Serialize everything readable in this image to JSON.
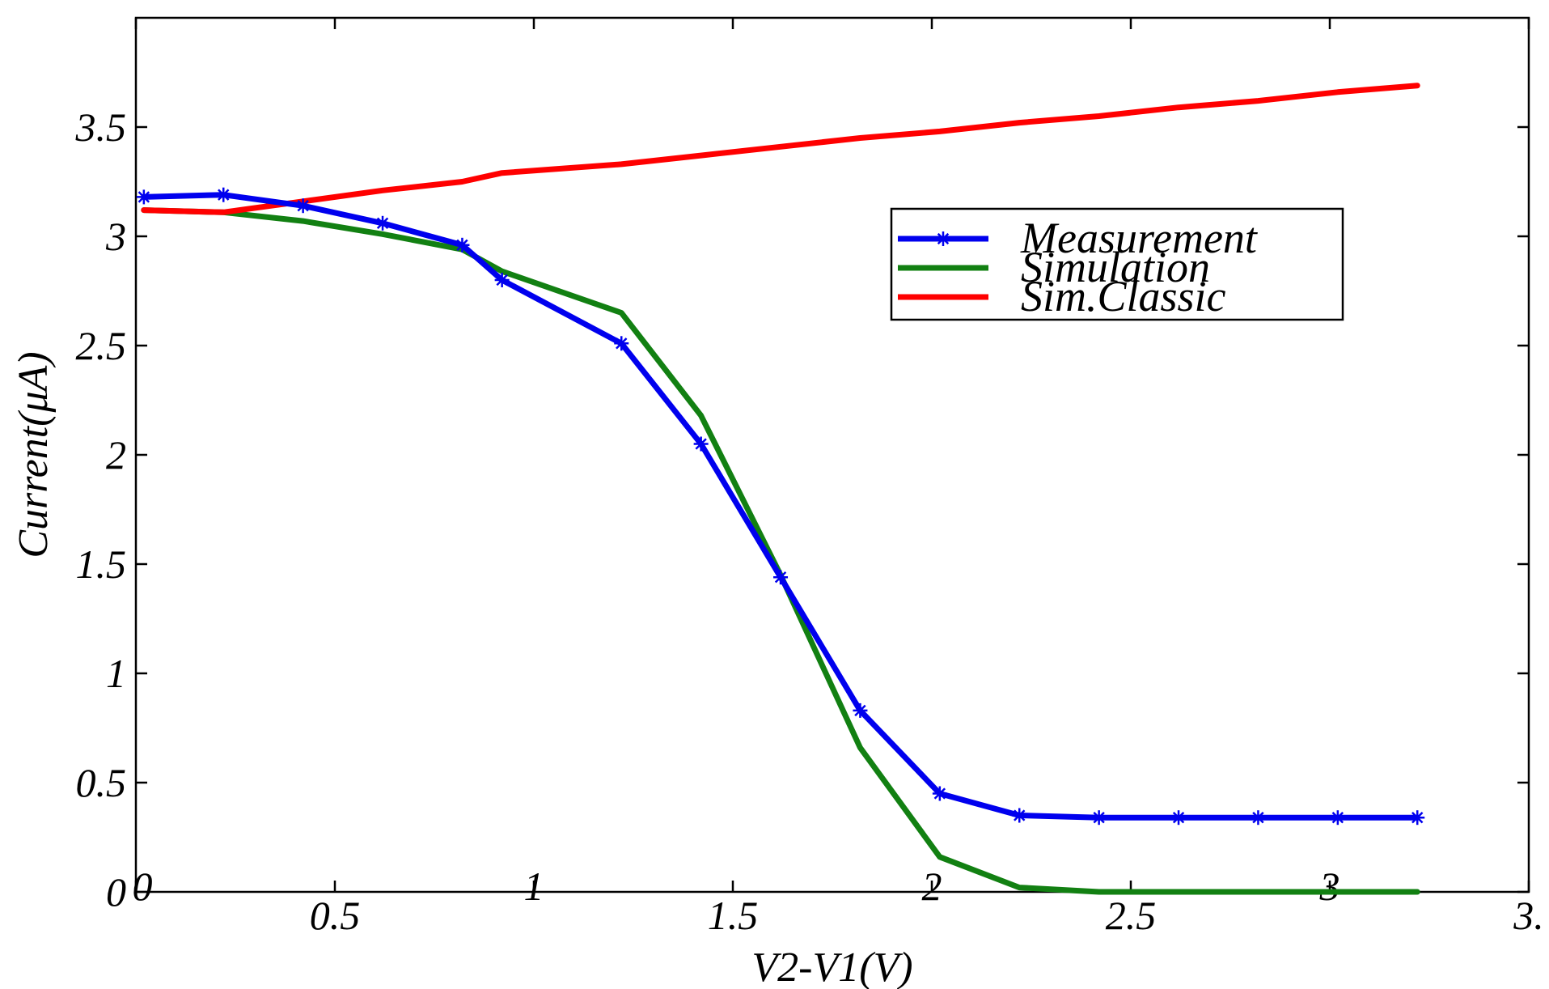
{
  "chart_data": {
    "type": "line",
    "title": "",
    "xlabel": "V2-V1(V)",
    "ylabel": "Current(μA)",
    "xlim": [
      0,
      3.5
    ],
    "ylim": [
      0,
      4
    ],
    "x_ticks": [
      {
        "value": 0,
        "label": "0"
      },
      {
        "value": 0.5,
        "label": "0.5"
      },
      {
        "value": 1,
        "label": "1"
      },
      {
        "value": 1.5,
        "label": "1.5"
      },
      {
        "value": 2,
        "label": "2"
      },
      {
        "value": 2.5,
        "label": "2.5"
      },
      {
        "value": 3,
        "label": "3"
      },
      {
        "value": 3.5,
        "label": "3."
      }
    ],
    "y_ticks": [
      {
        "value": 0,
        "label": "0"
      },
      {
        "value": 0.5,
        "label": "0.5"
      },
      {
        "value": 1,
        "label": "1"
      },
      {
        "value": 1.5,
        "label": "1.5"
      },
      {
        "value": 2,
        "label": "2"
      },
      {
        "value": 2.5,
        "label": "2.5"
      },
      {
        "value": 3,
        "label": "3"
      },
      {
        "value": 3.5,
        "label": "3.5"
      }
    ],
    "grid": false,
    "legend_position": "upper-right",
    "series": [
      {
        "name": "Measurement",
        "color": "#0000ee",
        "marker": "asterisk",
        "x": [
          0.02,
          0.22,
          0.42,
          0.62,
          0.82,
          0.92,
          1.22,
          1.42,
          1.62,
          1.82,
          2.02,
          2.22,
          2.42,
          2.62,
          2.82,
          3.02,
          3.22
        ],
        "y": [
          3.18,
          3.19,
          3.14,
          3.06,
          2.96,
          2.8,
          2.51,
          2.05,
          1.44,
          0.83,
          0.45,
          0.35,
          0.34,
          0.34,
          0.34,
          0.34,
          0.34
        ]
      },
      {
        "name": "Simulation",
        "color": "#128012",
        "marker": "none",
        "x": [
          0.02,
          0.22,
          0.42,
          0.62,
          0.82,
          0.92,
          1.22,
          1.42,
          1.62,
          1.82,
          2.02,
          2.22,
          2.42,
          2.62,
          2.82,
          3.02,
          3.22
        ],
        "y": [
          3.12,
          3.11,
          3.07,
          3.01,
          2.94,
          2.84,
          2.65,
          2.18,
          1.45,
          0.66,
          0.16,
          0.02,
          0.0,
          0.0,
          0.0,
          0.0,
          0.0
        ]
      },
      {
        "name": "Sim.Classic",
        "color": "#ff0000",
        "marker": "none",
        "x": [
          0.02,
          0.22,
          0.42,
          0.62,
          0.82,
          0.92,
          1.22,
          1.42,
          1.62,
          1.82,
          2.02,
          2.22,
          2.42,
          2.62,
          2.82,
          3.02,
          3.22
        ],
        "y": [
          3.12,
          3.11,
          3.16,
          3.21,
          3.25,
          3.29,
          3.33,
          3.37,
          3.41,
          3.45,
          3.48,
          3.52,
          3.55,
          3.59,
          3.62,
          3.66,
          3.69
        ]
      }
    ]
  }
}
